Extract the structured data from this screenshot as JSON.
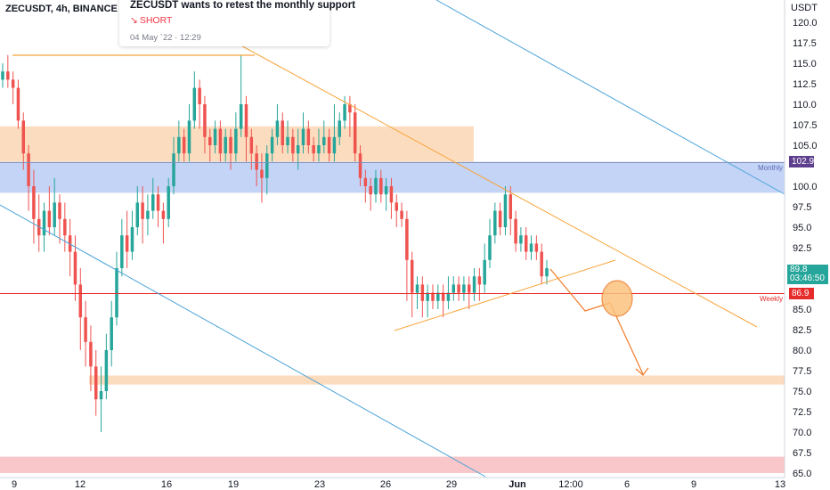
{
  "header": {
    "symbol_title": "ZECUSDT, 4h, BINANCE"
  },
  "idea": {
    "title": "ZECUSDT wants to retest the monthly support",
    "signal": "SHORT",
    "date": "04 May `22 · 12:29"
  },
  "axis": {
    "currency": "USDT",
    "y_ticks": [
      "120.0",
      "117.5",
      "115.0",
      "112.5",
      "110.0",
      "107.5",
      "105.0",
      "100.0",
      "97.5",
      "95.0",
      "92.5",
      "85.0",
      "82.5",
      "80.0",
      "77.5",
      "75.0",
      "72.5",
      "70.0",
      "67.5",
      "65.0"
    ],
    "x_ticks": [
      "9",
      "12",
      "16",
      "19",
      "23",
      "26",
      "29",
      "Jun",
      "12:00",
      "6",
      "9",
      "13"
    ]
  },
  "levels": {
    "monthly_label": "Monthly",
    "monthly_price": "102.9",
    "weekly_label": "Weekly",
    "weekly_price": "86.9",
    "last_price": "89.8",
    "countdown": "03:46:50"
  },
  "colors": {
    "up": "#26a69a",
    "down": "#ef5350",
    "orange_zone": "#fbd6b3",
    "blue_zone": "#b9cdf5",
    "red_zone": "#f8bcc0",
    "monthly_tag": "#5d3f8e",
    "weekly_tag": "#e62b2b",
    "last_tag": "#26a69a",
    "trendline_orange": "#f7a53c",
    "trendline_blue": "#4aa3d8"
  },
  "chart_data": {
    "type": "candlestick",
    "symbol": "ZECUSDT",
    "interval": "4h",
    "exchange": "BINANCE",
    "ylim": [
      65,
      122
    ],
    "x_labels": [
      "9",
      "12",
      "16",
      "19",
      "23",
      "26",
      "29",
      "Jun",
      "12:00",
      "6",
      "9",
      "13"
    ],
    "levels": [
      {
        "name": "Monthly",
        "value": 102.9
      },
      {
        "name": "Weekly",
        "value": 86.9
      }
    ],
    "zones": [
      {
        "from": 103,
        "to": 107.3,
        "color": "orange"
      },
      {
        "from": 99.2,
        "to": 102.9,
        "color": "blue"
      },
      {
        "from": 75.8,
        "to": 76.9,
        "color": "orange"
      },
      {
        "from": 65,
        "to": 67,
        "color": "red"
      }
    ],
    "candles": [
      [
        113,
        114,
        115,
        112
      ],
      [
        114,
        113,
        116,
        112
      ],
      [
        113,
        112,
        114,
        110
      ],
      [
        112,
        108,
        113,
        107
      ],
      [
        108,
        104,
        109,
        102
      ],
      [
        104,
        100,
        105,
        97
      ],
      [
        100,
        96,
        102,
        93
      ],
      [
        96,
        94,
        99,
        92
      ],
      [
        94,
        97,
        98,
        92
      ],
      [
        97,
        95,
        100,
        94
      ],
      [
        95,
        98,
        101,
        94
      ],
      [
        98,
        96,
        99,
        93
      ],
      [
        96,
        94,
        98,
        92
      ],
      [
        94,
        92,
        96,
        89
      ],
      [
        92,
        88,
        94,
        86
      ],
      [
        88,
        84,
        90,
        80
      ],
      [
        84,
        81,
        86,
        78
      ],
      [
        81,
        78,
        83,
        75
      ],
      [
        78,
        74,
        80,
        72
      ],
      [
        74,
        75,
        78,
        70
      ],
      [
        75,
        80,
        82,
        74
      ],
      [
        80,
        84,
        86,
        78
      ],
      [
        84,
        90,
        92,
        83
      ],
      [
        90,
        94,
        96,
        89
      ],
      [
        94,
        92,
        97,
        90
      ],
      [
        92,
        95,
        97,
        91
      ],
      [
        95,
        98,
        100,
        94
      ],
      [
        98,
        96,
        100,
        93
      ],
      [
        96,
        97,
        99,
        94
      ],
      [
        97,
        99,
        101,
        96
      ],
      [
        99,
        97,
        100,
        95
      ],
      [
        97,
        96,
        98,
        93
      ],
      [
        96,
        100,
        101,
        95
      ],
      [
        100,
        104,
        106,
        99
      ],
      [
        104,
        106,
        108,
        103
      ],
      [
        106,
        104,
        107,
        103
      ],
      [
        104,
        108,
        110,
        103
      ],
      [
        108,
        112,
        114,
        107
      ],
      [
        112,
        110,
        113,
        107
      ],
      [
        110,
        106,
        111,
        104
      ],
      [
        106,
        105,
        107,
        103
      ],
      [
        105,
        107,
        108,
        104
      ],
      [
        107,
        104,
        108,
        103
      ],
      [
        104,
        106,
        107,
        103
      ],
      [
        106,
        104,
        107,
        102
      ],
      [
        104,
        107,
        109,
        103
      ],
      [
        107,
        110,
        116,
        106
      ],
      [
        110,
        106,
        111,
        103
      ],
      [
        106,
        104,
        107,
        102
      ],
      [
        104,
        102,
        105,
        100
      ],
      [
        102,
        101,
        104,
        98
      ],
      [
        101,
        104,
        105,
        99
      ],
      [
        104,
        106,
        107,
        103
      ],
      [
        106,
        108,
        110,
        105
      ],
      [
        108,
        105,
        109,
        104
      ],
      [
        105,
        106,
        108,
        104
      ],
      [
        106,
        104,
        107,
        103
      ],
      [
        104,
        105,
        107,
        102
      ],
      [
        105,
        107,
        109,
        104
      ],
      [
        107,
        105,
        108,
        104
      ],
      [
        105,
        104,
        106,
        103
      ],
      [
        104,
        105,
        107,
        103
      ],
      [
        105,
        106,
        108,
        104
      ],
      [
        106,
        104,
        107,
        103
      ],
      [
        104,
        106,
        110,
        103
      ],
      [
        106,
        108,
        109,
        105
      ],
      [
        108,
        110,
        111,
        107
      ],
      [
        110,
        109,
        111,
        106
      ],
      [
        109,
        104,
        110,
        103
      ],
      [
        104,
        101,
        105,
        100
      ],
      [
        101,
        100,
        102,
        98
      ],
      [
        100,
        99,
        101,
        97
      ],
      [
        99,
        101,
        102,
        98
      ],
      [
        101,
        99,
        102,
        98
      ],
      [
        99,
        100,
        101,
        97
      ],
      [
        100,
        98,
        101,
        96
      ],
      [
        98,
        97,
        99,
        95
      ],
      [
        97,
        96,
        98,
        95
      ],
      [
        96,
        91,
        97,
        86
      ],
      [
        91,
        87,
        92,
        84
      ],
      [
        87,
        88,
        89,
        85
      ],
      [
        88,
        86,
        89,
        84
      ],
      [
        86,
        87,
        88,
        84
      ],
      [
        87,
        86,
        88,
        85
      ],
      [
        86,
        87,
        88,
        85
      ],
      [
        87,
        86,
        88,
        84
      ],
      [
        86,
        87,
        89,
        85
      ],
      [
        87,
        88,
        89,
        86
      ],
      [
        88,
        87,
        89,
        86
      ],
      [
        87,
        88,
        89,
        86
      ],
      [
        88,
        87,
        89,
        85
      ],
      [
        87,
        89,
        90,
        86
      ],
      [
        89,
        88,
        90,
        86
      ],
      [
        88,
        91,
        93,
        87
      ],
      [
        91,
        94,
        96,
        90
      ],
      [
        94,
        97,
        98,
        93
      ],
      [
        97,
        95,
        98,
        94
      ],
      [
        95,
        99,
        100,
        94
      ],
      [
        99,
        96,
        100,
        94
      ],
      [
        96,
        93,
        97,
        92
      ],
      [
        93,
        94,
        95,
        92
      ],
      [
        94,
        92,
        95,
        91
      ],
      [
        92,
        93,
        94,
        91
      ],
      [
        93,
        92,
        94,
        91
      ],
      [
        92,
        89,
        93,
        88
      ],
      [
        89,
        90,
        91,
        88
      ]
    ]
  }
}
